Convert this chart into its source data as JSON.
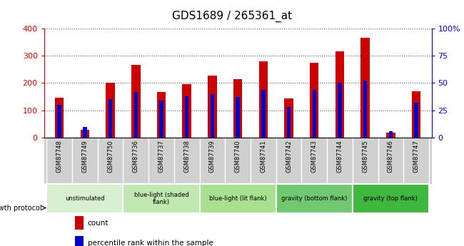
{
  "title": "GDS1689 / 265361_at",
  "samples": [
    "GSM87748",
    "GSM87749",
    "GSM87750",
    "GSM87736",
    "GSM87737",
    "GSM87738",
    "GSM87739",
    "GSM87740",
    "GSM87741",
    "GSM87742",
    "GSM87743",
    "GSM87744",
    "GSM87745",
    "GSM87746",
    "GSM87747"
  ],
  "counts": [
    145,
    30,
    200,
    265,
    168,
    195,
    228,
    215,
    280,
    143,
    275,
    315,
    365,
    18,
    170
  ],
  "percentile_ranks": [
    30,
    10,
    35,
    42,
    34,
    38,
    40,
    37,
    44,
    28,
    44,
    50,
    52,
    6,
    32
  ],
  "groups": [
    {
      "label": "unstimulated",
      "indices": [
        0,
        1,
        2
      ],
      "color": "#d8f0d0"
    },
    {
      "label": "blue-light (shaded\nflank)",
      "indices": [
        3,
        4,
        5
      ],
      "color": "#c0e8b0"
    },
    {
      "label": "blue-light (lit flank)",
      "indices": [
        6,
        7,
        8
      ],
      "color": "#a8e090"
    },
    {
      "label": "gravity (bottom flank)",
      "indices": [
        9,
        10,
        11
      ],
      "color": "#70c870"
    },
    {
      "label": "gravity (top flank)",
      "indices": [
        12,
        13,
        14
      ],
      "color": "#40b840"
    }
  ],
  "bar_color_red": "#cc0000",
  "bar_color_blue": "#0000cc",
  "bar_width": 0.35,
  "blue_bar_width": 0.15,
  "ylim_left": [
    0,
    400
  ],
  "ylim_right": [
    0,
    100
  ],
  "yticks_left": [
    0,
    100,
    200,
    300,
    400
  ],
  "yticks_right": [
    0,
    25,
    50,
    75,
    100
  ],
  "yticklabels_right": [
    "0",
    "25",
    "50",
    "75",
    "100%"
  ],
  "axis_color_left": "#cc0000",
  "axis_color_right": "#0000cc",
  "grid_color": "#555555",
  "plot_bg_color": "#ffffff",
  "xtick_bg_color": "#d0d0d0",
  "growth_protocol_label": "growth protocol",
  "legend_count": "count",
  "legend_percentile": "percentile rank within the sample"
}
